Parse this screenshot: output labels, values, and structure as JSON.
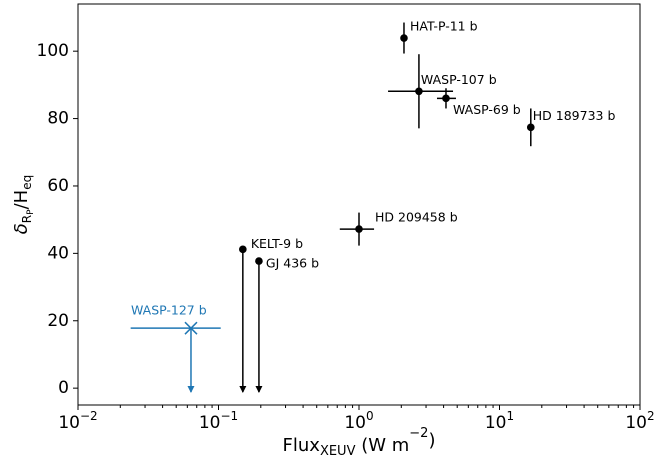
{
  "chart_data": {
    "type": "scatter",
    "xlabel": [
      {
        "text": "Flux"
      },
      {
        "text": "XEUV",
        "sub": true
      },
      {
        "text": " (W m"
      },
      {
        "text": "−2",
        "sup": true
      },
      {
        "text": ")"
      }
    ],
    "ylabel": [
      {
        "text": "δ"
      },
      {
        "text": "R",
        "sub": true
      },
      {
        "text": "P",
        "subsub": true
      },
      {
        "text": "/H"
      },
      {
        "text": "eq",
        "sub": true
      }
    ],
    "xscale": "log",
    "xlim": [
      0.01,
      100
    ],
    "ylim": [
      -5,
      114
    ],
    "xticks": [
      {
        "value": 0.01,
        "label": "10",
        "exponent": "−2"
      },
      {
        "value": 0.1,
        "label": "10",
        "exponent": "−1"
      },
      {
        "value": 1,
        "label": "10",
        "exponent": "0"
      },
      {
        "value": 10,
        "label": "10",
        "exponent": "1"
      },
      {
        "value": 100,
        "label": "10",
        "exponent": "2"
      }
    ],
    "xminorticks": [
      0.02,
      0.03,
      0.04,
      0.05,
      0.06,
      0.07,
      0.08,
      0.09,
      0.2,
      0.3,
      0.4,
      0.5,
      0.6,
      0.7,
      0.8,
      0.9,
      2,
      3,
      4,
      5,
      6,
      7,
      8,
      9,
      20,
      30,
      40,
      50,
      60,
      70,
      80,
      90
    ],
    "yticks": [
      0,
      20,
      40,
      60,
      80,
      100
    ],
    "points": [
      {
        "name": "HAT-P-11 b",
        "color": "#000000",
        "x": 2.09,
        "y": 103.9,
        "yerr": 4.6
      },
      {
        "name": "WASP-107 b",
        "color": "#000000",
        "x": 2.67,
        "y": 88.1,
        "yerr": 11,
        "xerr_low": 1.06,
        "xerr_high": 2.0
      },
      {
        "name": "WASP-69 b",
        "color": "#000000",
        "x": 4.16,
        "y": 86.0,
        "yerr": 3,
        "xerr_low": 0.57,
        "xerr_high": 0.74
      },
      {
        "name": "HD 189733 b",
        "color": "#000000",
        "x": 16.7,
        "y": 77.4,
        "yerr": 5.6
      },
      {
        "name": "HD 209458 b",
        "color": "#000000",
        "x": 1.0,
        "y": 47.2,
        "yerr": 4.9,
        "xerr_low": 0.27,
        "xerr_high": 0.28
      },
      {
        "name": "KELT-9 b",
        "color": "#000000",
        "x": 0.149,
        "y": 41.2,
        "upper_limit": true
      },
      {
        "name": "GJ 436 b",
        "color": "#000000",
        "x": 0.194,
        "y": 37.7,
        "upper_limit": true
      },
      {
        "name": "WASP-127 b",
        "color": "#1f77b4",
        "x": 0.0637,
        "y": 17.8,
        "xerr_low": 0.04,
        "xerr_high": 0.04,
        "upper_limit": true,
        "marker": "x"
      }
    ]
  }
}
